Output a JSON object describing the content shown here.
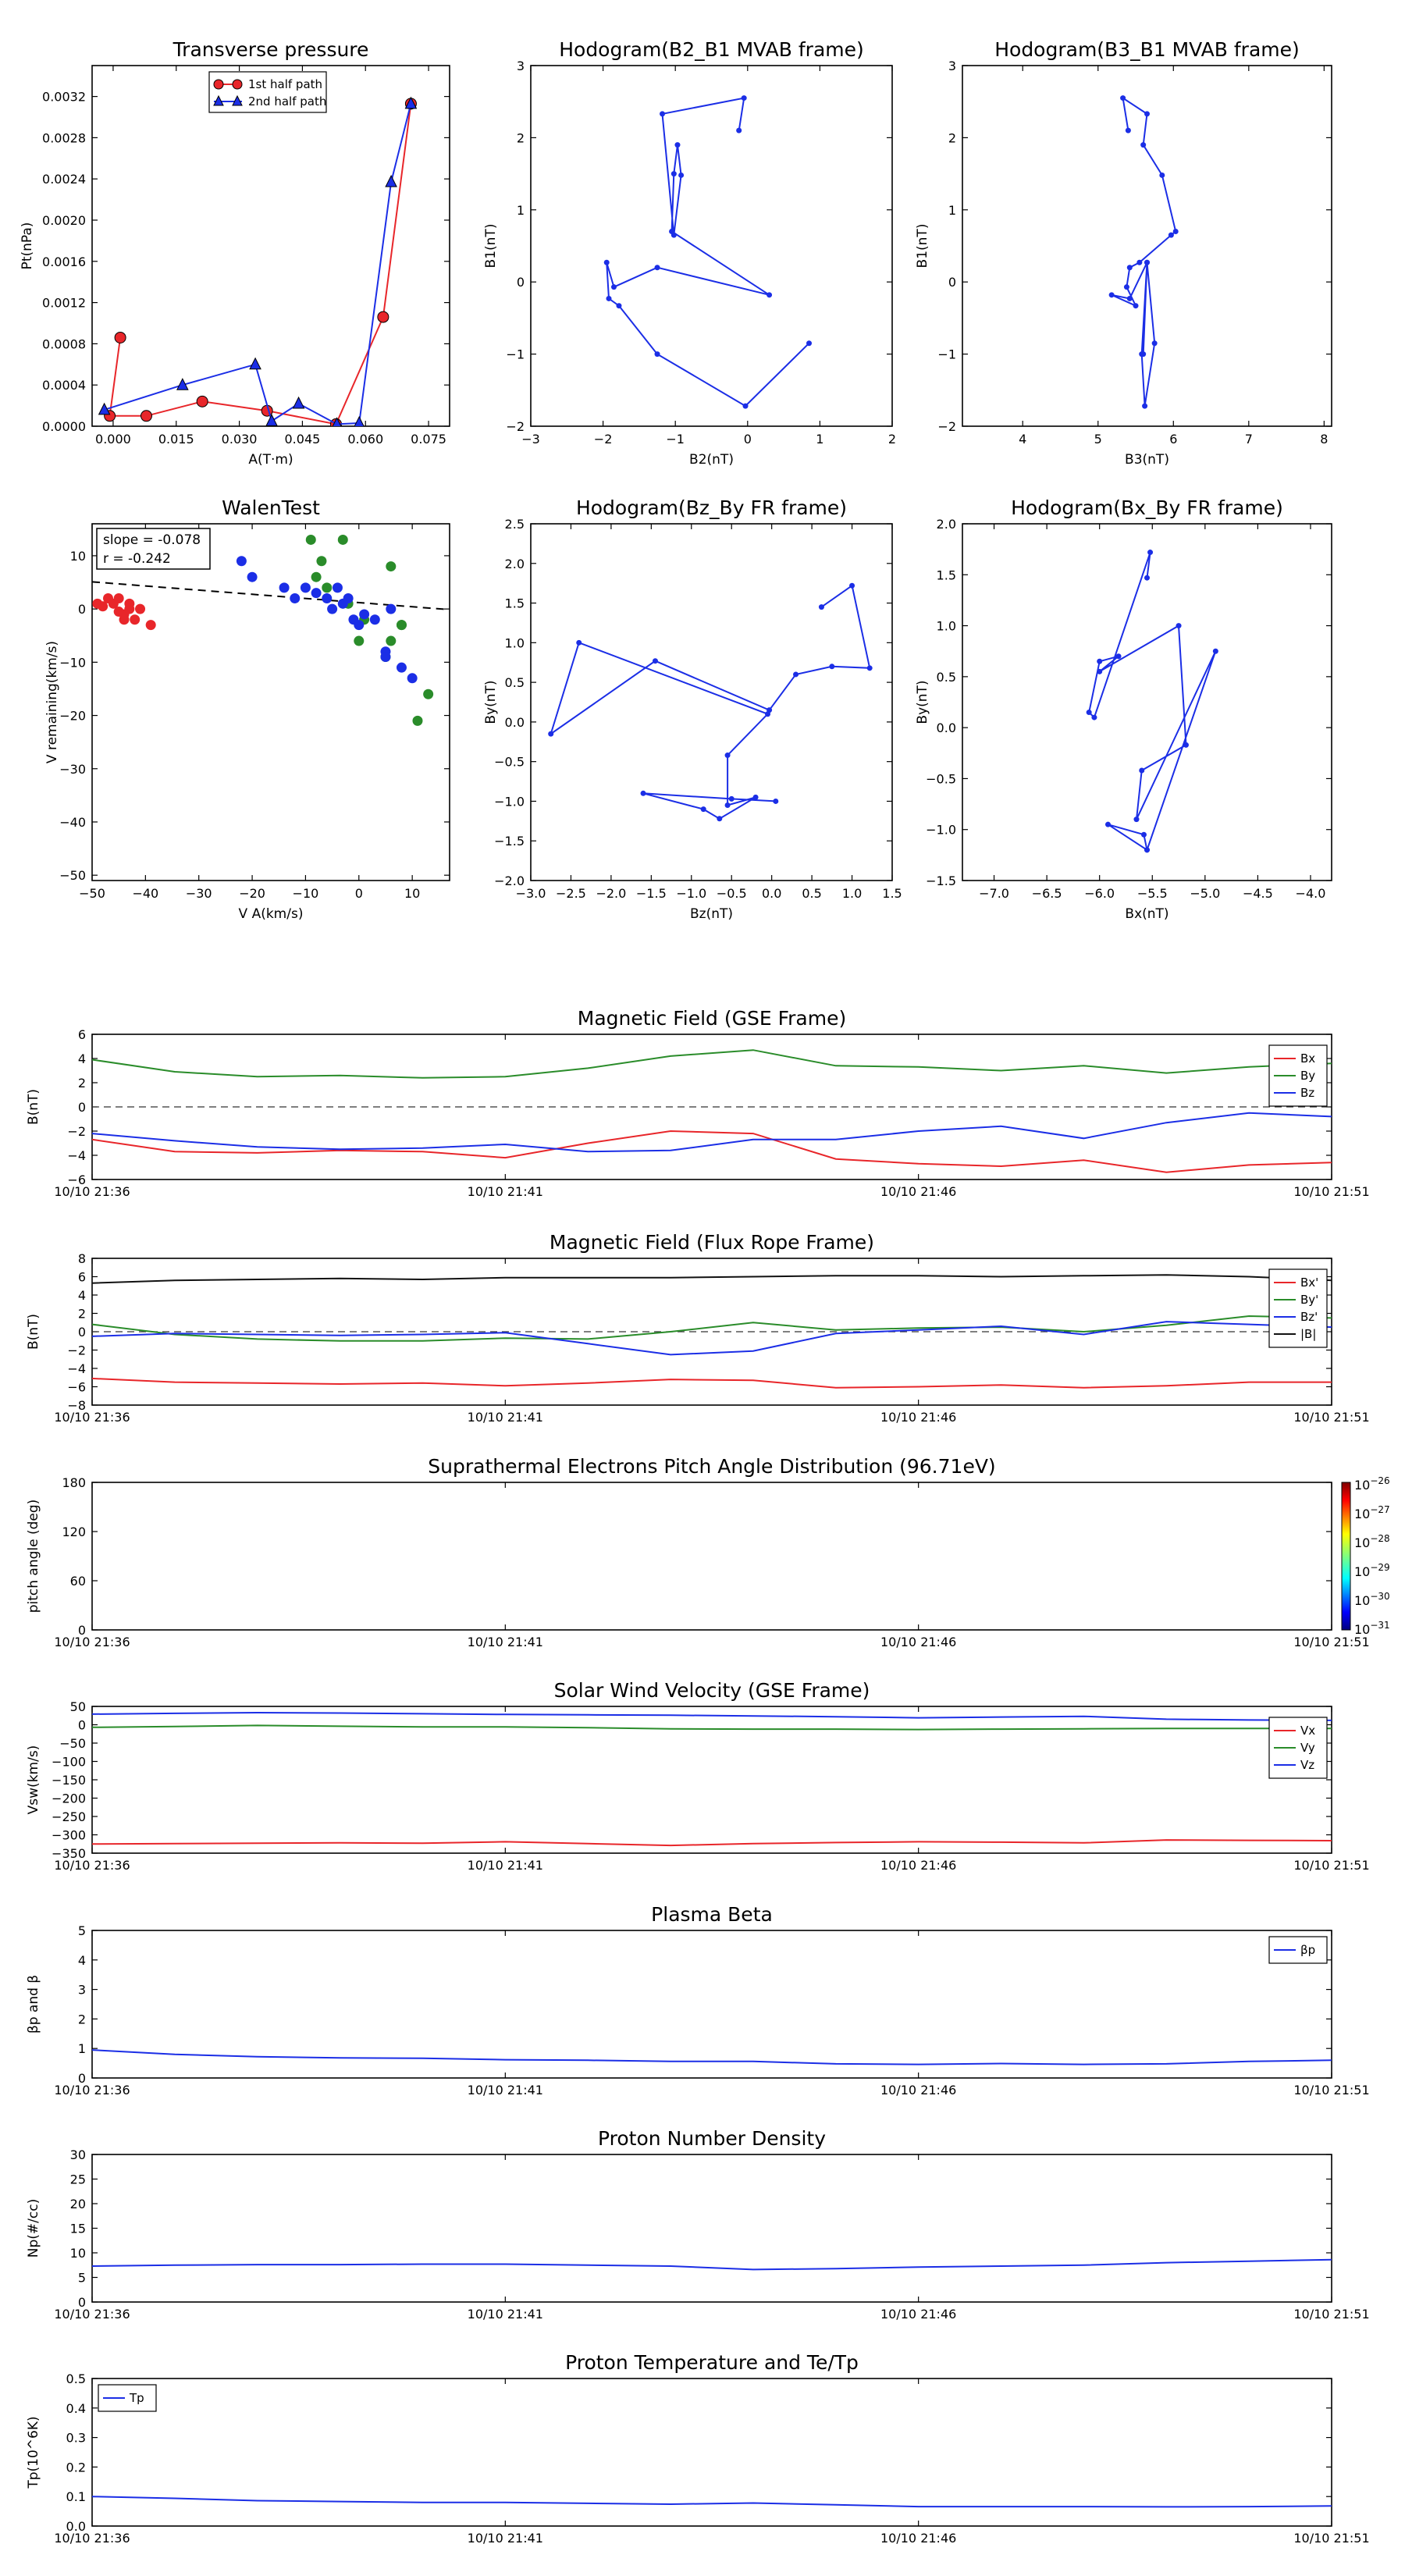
{
  "colors": {
    "red": "#e8262a",
    "green": "#2a8c2a",
    "blue": "#1b2ee6",
    "black": "#111111"
  },
  "chart_data": [
    {
      "id": "pt",
      "type": "line",
      "title": "Transverse pressure",
      "xlabel": "A(T·m)",
      "ylabel": "Pt(nPa)",
      "xlim": [
        -0.005,
        0.08
      ],
      "ylim": [
        0,
        0.0035
      ],
      "xticks": [
        "0.000",
        "0.015",
        "0.030",
        "0.045",
        "0.060",
        "0.075"
      ],
      "yticks": [
        "0.0000",
        "0.0004",
        "0.0008",
        "0.0012",
        "0.0016",
        "0.0020",
        "0.0024",
        "0.0028",
        "0.0032"
      ],
      "legend_position": "top-center",
      "series": [
        {
          "name": "1st half path",
          "color": "red",
          "marker": "circle",
          "x": [
            0.0708,
            0.0642,
            0.053,
            0.0366,
            0.0212,
            0.0079,
            -0.0008,
            0.0017
          ],
          "y": [
            0.00313,
            0.00106,
            2e-05,
            0.00015,
            0.00024,
            0.0001,
            0.0001,
            0.00086
          ]
        },
        {
          "name": "2nd half path",
          "color": "blue",
          "marker": "triangle",
          "x": [
            0.0708,
            0.0661,
            0.0585,
            0.0532,
            0.0441,
            0.0377,
            0.0338,
            0.0165,
            -0.0021
          ],
          "y": [
            0.00313,
            0.00237,
            3e-05,
            2e-05,
            0.00022,
            5e-05,
            0.0006,
            0.0004,
            0.00016
          ]
        }
      ]
    },
    {
      "id": "h1",
      "type": "line",
      "title": "Hodogram(B2_B1 MVAB frame)",
      "xlabel": "B2(nT)",
      "ylabel": "B1(nT)",
      "xlim": [
        -3,
        2
      ],
      "ylim": [
        -2,
        3
      ],
      "xticks": [
        "−3",
        "−2",
        "−1",
        "0",
        "1",
        "2"
      ],
      "yticks": [
        "−2",
        "−1",
        "0",
        "1",
        "2",
        "3"
      ],
      "series": [
        {
          "name": "",
          "color": "blue",
          "marker": "dot",
          "x": [
            -0.12,
            -0.05,
            -1.18,
            -1.02,
            -0.92,
            -0.97,
            -1.02,
            -1.05,
            0.3,
            -1.25,
            -1.85,
            -1.95,
            -1.92,
            -1.78,
            -1.25,
            -0.03,
            0.85
          ],
          "y": [
            2.1,
            2.55,
            2.33,
            0.65,
            1.48,
            1.9,
            1.5,
            0.7,
            -0.18,
            0.2,
            -0.07,
            0.27,
            -0.23,
            -0.33,
            -1.0,
            -1.72,
            -0.85
          ]
        }
      ]
    },
    {
      "id": "h2",
      "type": "line",
      "title": "Hodogram(B3_B1 MVAB frame)",
      "xlabel": "B3(nT)",
      "ylabel": "B1(nT)",
      "xlim": [
        3.2,
        8.1
      ],
      "ylim": [
        -2,
        3
      ],
      "xticks": [
        "4",
        "5",
        "6",
        "7",
        "8"
      ],
      "yticks": [
        "−2",
        "−1",
        "0",
        "1",
        "2",
        "3"
      ],
      "series": [
        {
          "name": "",
          "color": "blue",
          "marker": "dot",
          "x": [
            5.4,
            5.33,
            5.65,
            5.6,
            5.85,
            6.03,
            5.97,
            5.55,
            5.42,
            5.38,
            5.5,
            5.18,
            5.42,
            5.65,
            5.58,
            5.62,
            5.75,
            5.65,
            5.6
          ],
          "y": [
            2.1,
            2.55,
            2.33,
            1.9,
            1.48,
            0.7,
            0.65,
            0.27,
            0.2,
            -0.07,
            -0.33,
            -0.18,
            -0.23,
            0.27,
            -1.0,
            -1.72,
            -0.85,
            0.27,
            -1.0
          ]
        }
      ]
    },
    {
      "id": "walen",
      "type": "scatter",
      "title": "WalenTest",
      "xlabel": "V A(km/s)",
      "ylabel": "V remaining(km/s)",
      "xlim": [
        -50,
        17
      ],
      "ylim": [
        -51,
        16
      ],
      "xticks": [
        "−50",
        "−40",
        "−30",
        "−20",
        "−10",
        "0",
        "10"
      ],
      "yticks": [
        "−50",
        "−40",
        "−30",
        "−20",
        "−10",
        "0",
        "10"
      ],
      "annotation": [
        "slope = -0.078",
        "r = -0.242"
      ],
      "fit_line": {
        "slope": -0.078,
        "intercept": 1.2
      },
      "series": [
        {
          "name": "",
          "color": "red",
          "x": [
            -49,
            -47,
            -46,
            -45,
            -44,
            -44,
            -43,
            -43,
            -42,
            -41,
            -39,
            -48,
            -45
          ],
          "y": [
            1,
            2,
            1,
            2,
            -1,
            -2,
            0,
            1,
            -2,
            0,
            -3,
            0.5,
            -0.5
          ]
        },
        {
          "name": "",
          "color": "green",
          "x": [
            -8,
            -9,
            -8,
            -3,
            -7,
            -2,
            -6,
            0,
            1,
            6,
            6,
            8,
            5,
            8,
            11,
            13
          ],
          "y": [
            17,
            13,
            6,
            13,
            9,
            1,
            4,
            -6,
            -2,
            8,
            -6,
            -3,
            -9,
            -3,
            -21,
            -16
          ]
        },
        {
          "name": "",
          "color": "blue",
          "x": [
            -22,
            -20,
            -14,
            -12,
            -10,
            -8,
            -6,
            -4,
            -2,
            -1,
            0,
            1,
            3,
            5,
            5,
            6,
            8,
            10,
            -5,
            -3
          ],
          "y": [
            9,
            6,
            4,
            2,
            4,
            3,
            2,
            4,
            2,
            -2,
            -3,
            -1,
            -2,
            -8,
            -9,
            0,
            -11,
            -13,
            0,
            1
          ]
        }
      ]
    },
    {
      "id": "h3",
      "type": "line",
      "title": "Hodogram(Bz_By FR frame)",
      "xlabel": "Bz(nT)",
      "ylabel": "By(nT)",
      "xlim": [
        -3,
        1.5
      ],
      "ylim": [
        -2,
        2.5
      ],
      "xticks": [
        "−3.0",
        "−2.5",
        "−2.0",
        "−1.5",
        "−1.0",
        "−0.5",
        "0.0",
        "0.5",
        "1.0",
        "1.5"
      ],
      "yticks": [
        "−2.0",
        "−1.5",
        "−1.0",
        "−0.5",
        "0.0",
        "0.5",
        "1.0",
        "1.5",
        "2.0",
        "2.5"
      ],
      "series": [
        {
          "name": "",
          "color": "blue",
          "marker": "dot",
          "x": [
            0.62,
            1.0,
            1.22,
            0.75,
            0.3,
            -0.03,
            -1.45,
            -2.75,
            -2.4,
            -0.05,
            -0.55,
            -0.55,
            -0.2,
            -0.65,
            -0.85,
            -1.6,
            -0.5,
            0.05
          ],
          "y": [
            1.45,
            1.72,
            0.68,
            0.7,
            0.6,
            0.15,
            0.77,
            -0.15,
            1.0,
            0.1,
            -0.42,
            -1.05,
            -0.95,
            -1.22,
            -1.1,
            -0.9,
            -0.97,
            -1.0
          ]
        }
      ]
    },
    {
      "id": "h4",
      "type": "line",
      "title": "Hodogram(Bx_By FR frame)",
      "xlabel": "Bx(nT)",
      "ylabel": "By(nT)",
      "xlim": [
        -7.3,
        -3.8
      ],
      "ylim": [
        -1.5,
        2
      ],
      "xticks": [
        "−7.0",
        "−6.5",
        "−6.0",
        "−5.5",
        "−5.0",
        "−4.5",
        "−4.0"
      ],
      "yticks": [
        "−1.5",
        "−1.0",
        "−0.5",
        "0.0",
        "0.5",
        "1.0",
        "1.5",
        "2.0"
      ],
      "series": [
        {
          "name": "",
          "color": "blue",
          "marker": "dot",
          "x": [
            -5.55,
            -5.52,
            -6.05,
            -6.1,
            -6.0,
            -5.82,
            -6.0,
            -5.25,
            -5.18,
            -5.6,
            -5.65,
            -4.9,
            -5.55,
            -5.92,
            -5.58,
            -5.55
          ],
          "y": [
            1.47,
            1.72,
            0.1,
            0.15,
            0.65,
            0.7,
            0.55,
            1.0,
            -0.17,
            -0.42,
            -0.9,
            0.75,
            -1.2,
            -0.95,
            -1.05,
            -1.2
          ]
        }
      ]
    },
    {
      "id": "ts_bgse",
      "type": "line",
      "title": "Magnetic Field (GSE Frame)",
      "ylabel": "B(nT)",
      "ylim": [
        -6,
        6
      ],
      "yticks": [
        "−6",
        "−4",
        "−2",
        "0",
        "2",
        "4",
        "6"
      ],
      "xticks": [
        "10/10 21:36",
        "10/10 21:41",
        "10/10 21:46",
        "10/10 21:51"
      ],
      "zero_line": true,
      "legend_position": "right",
      "series": [
        {
          "name": "Bx",
          "color": "red",
          "y": [
            -2.7,
            -3.7,
            -3.8,
            -3.6,
            -3.7,
            -4.2,
            -3.0,
            -2.0,
            -2.2,
            -4.3,
            -4.7,
            -4.9,
            -4.4,
            -5.4,
            -4.8,
            -4.6
          ]
        },
        {
          "name": "By",
          "color": "green",
          "y": [
            3.9,
            2.9,
            2.5,
            2.6,
            2.4,
            2.5,
            3.2,
            4.2,
            4.7,
            3.4,
            3.3,
            3.0,
            3.4,
            2.8,
            3.3,
            3.6
          ]
        },
        {
          "name": "Bz",
          "color": "blue",
          "y": [
            -2.2,
            -2.8,
            -3.3,
            -3.5,
            -3.4,
            -3.1,
            -3.7,
            -3.6,
            -2.7,
            -2.7,
            -2.0,
            -1.6,
            -2.6,
            -1.3,
            -0.5,
            -0.8
          ]
        }
      ]
    },
    {
      "id": "ts_bfr",
      "type": "line",
      "title": "Magnetic Field (Flux Rope Frame)",
      "ylabel": "B(nT)",
      "ylim": [
        -8,
        8
      ],
      "yticks": [
        "−8",
        "−6",
        "−4",
        "−2",
        "0",
        "2",
        "4",
        "6",
        "8"
      ],
      "xticks": [
        "10/10 21:36",
        "10/10 21:41",
        "10/10 21:46",
        "10/10 21:51"
      ],
      "zero_line": true,
      "legend_position": "right",
      "series": [
        {
          "name": "Bx'",
          "color": "red",
          "y": [
            -5.1,
            -5.5,
            -5.6,
            -5.7,
            -5.6,
            -5.9,
            -5.6,
            -5.2,
            -5.3,
            -6.1,
            -6.0,
            -5.8,
            -6.1,
            -5.9,
            -5.5,
            -5.5
          ]
        },
        {
          "name": "By'",
          "color": "green",
          "y": [
            0.8,
            -0.3,
            -0.8,
            -1.0,
            -1.0,
            -0.7,
            -0.8,
            0.0,
            1.0,
            0.2,
            0.4,
            0.5,
            0.0,
            0.7,
            1.7,
            1.5
          ]
        },
        {
          "name": "Bz'",
          "color": "blue",
          "y": [
            -0.5,
            -0.2,
            -0.3,
            -0.4,
            -0.3,
            -0.1,
            -1.3,
            -2.5,
            -2.1,
            -0.2,
            0.2,
            0.6,
            -0.3,
            1.1,
            0.8,
            0.5
          ]
        },
        {
          "name": "|B|",
          "color": "black",
          "y": [
            5.3,
            5.6,
            5.7,
            5.8,
            5.7,
            5.9,
            5.9,
            5.9,
            6.0,
            6.1,
            6.1,
            6.0,
            6.1,
            6.2,
            6.0,
            5.6
          ]
        }
      ]
    },
    {
      "id": "ts_pad",
      "type": "heatmap",
      "title": "Suprathermal Electrons Pitch Angle Distribution (96.71eV)",
      "ylabel": "pitch angle (deg)",
      "ylim": [
        0,
        180
      ],
      "yticks": [
        "0",
        "60",
        "120",
        "180"
      ],
      "xticks": [
        "10/10 21:36",
        "10/10 21:41",
        "10/10 21:46",
        "10/10 21:51"
      ],
      "colorbar_ticks": [
        "10^-26",
        "10^-27",
        "10^-28",
        "10^-29",
        "10^-30",
        "10^-31"
      ],
      "series": []
    },
    {
      "id": "ts_vsw",
      "type": "line",
      "title": "Solar Wind Velocity (GSE Frame)",
      "ylabel": "Vsw(km/s)",
      "ylim": [
        -350,
        50
      ],
      "yticks": [
        "−350",
        "−300",
        "−250",
        "−200",
        "−150",
        "−100",
        "−50",
        "0",
        "50"
      ],
      "xticks": [
        "10/10 21:36",
        "10/10 21:41",
        "10/10 21:46",
        "10/10 21:51"
      ],
      "legend_position": "right",
      "series": [
        {
          "name": "Vx",
          "color": "red",
          "y": [
            -325,
            -324,
            -323,
            -322,
            -323,
            -319,
            -324,
            -329,
            -324,
            -321,
            -319,
            -320,
            -322,
            -314,
            -315,
            -316
          ]
        },
        {
          "name": "Vy",
          "color": "green",
          "y": [
            -7,
            -5,
            -2,
            -4,
            -6,
            -6,
            -8,
            -11,
            -12,
            -12,
            -13,
            -12,
            -11,
            -10,
            -10,
            -10
          ]
        },
        {
          "name": "Vz",
          "color": "blue",
          "y": [
            29,
            31,
            33,
            32,
            30,
            28,
            27,
            26,
            24,
            22,
            19,
            21,
            23,
            15,
            13,
            12
          ]
        }
      ]
    },
    {
      "id": "ts_beta",
      "type": "line",
      "title": "Plasma Beta",
      "ylabel": "βp and β",
      "ylim": [
        0,
        5
      ],
      "yticks": [
        "0",
        "1",
        "2",
        "3",
        "4",
        "5"
      ],
      "xticks": [
        "10/10 21:36",
        "10/10 21:41",
        "10/10 21:46",
        "10/10 21:51"
      ],
      "legend_position": "top-right",
      "series": [
        {
          "name": "βp",
          "color": "blue",
          "y": [
            0.95,
            0.8,
            0.72,
            0.68,
            0.67,
            0.62,
            0.6,
            0.56,
            0.56,
            0.48,
            0.46,
            0.49,
            0.46,
            0.48,
            0.56,
            0.6
          ]
        }
      ]
    },
    {
      "id": "ts_np",
      "type": "line",
      "title": "Proton Number Density",
      "ylabel": "Np(#/cc)",
      "ylim": [
        0,
        30
      ],
      "yticks": [
        "0",
        "5",
        "10",
        "15",
        "20",
        "25",
        "30"
      ],
      "xticks": [
        "10/10 21:36",
        "10/10 21:41",
        "10/10 21:46",
        "10/10 21:51"
      ],
      "series": [
        {
          "name": "",
          "color": "blue",
          "y": [
            7.3,
            7.5,
            7.6,
            7.6,
            7.7,
            7.7,
            7.5,
            7.3,
            6.6,
            6.8,
            7.1,
            7.3,
            7.5,
            8.0,
            8.3,
            8.6
          ]
        }
      ]
    },
    {
      "id": "ts_tp",
      "type": "line",
      "title": "Proton Temperature and Te/Tp",
      "ylabel": "Tp(10^6K)",
      "ylim": [
        0,
        0.5
      ],
      "yticks": [
        "0.0",
        "0.1",
        "0.2",
        "0.3",
        "0.4",
        "0.5"
      ],
      "xticks": [
        "10/10 21:36",
        "10/10 21:41",
        "10/10 21:46",
        "10/10 21:51"
      ],
      "legend_position": "top-left",
      "series": [
        {
          "name": "Tp",
          "color": "blue",
          "y": [
            0.1,
            0.094,
            0.086,
            0.083,
            0.08,
            0.08,
            0.077,
            0.074,
            0.078,
            0.072,
            0.066,
            0.066,
            0.066,
            0.065,
            0.066,
            0.068
          ]
        }
      ]
    }
  ]
}
